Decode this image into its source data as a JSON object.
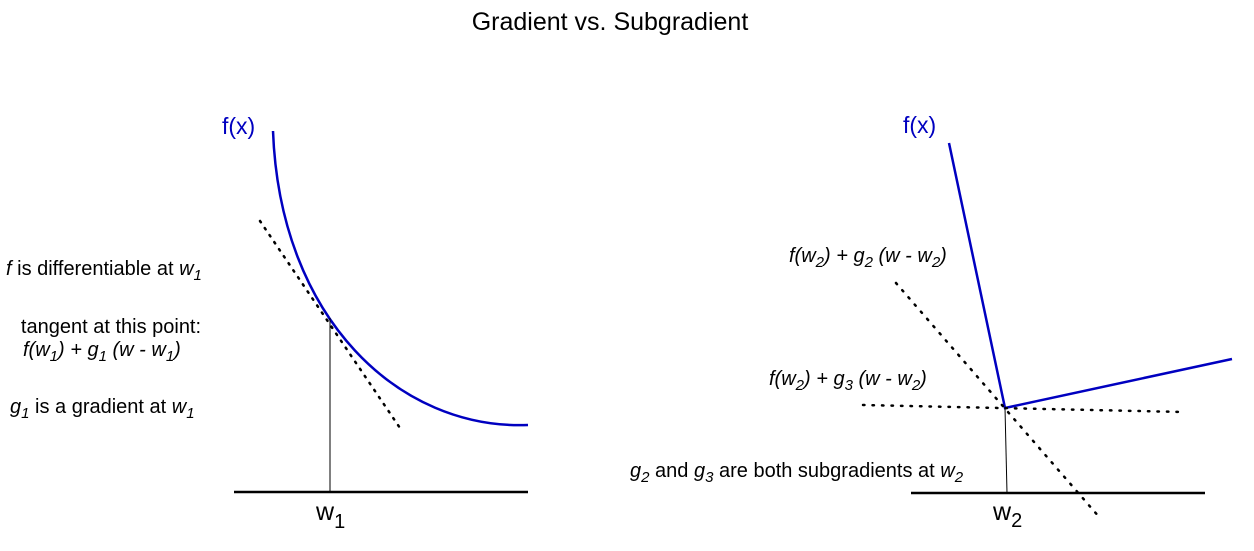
{
  "title": "Gradient vs. Subgradient",
  "colors": {
    "curve": "#0000c0",
    "text": "#000000",
    "background": "#ffffff"
  },
  "left_panel": {
    "function_label": "f(x)",
    "point_label": {
      "base": "w",
      "sub": "1"
    },
    "differentiable_note": {
      "f": "f",
      "text": " is differentiable at ",
      "w": "w",
      "sub": "1"
    },
    "tangent_heading": "tangent at this point:",
    "tangent_formula": {
      "a": "f(w",
      "a_sub": "1",
      "b": ") + g",
      "b_sub": "1",
      "c": " (w - w",
      "c_sub": "1",
      "d": ")"
    },
    "gradient_note": {
      "g": "g",
      "g_sub": "1",
      "text": " is a gradient at ",
      "w": "w",
      "w_sub": "1"
    }
  },
  "right_panel": {
    "function_label": "f(x)",
    "point_label": {
      "base": "w",
      "sub": "2"
    },
    "subgradient_line_1": {
      "a": "f(w",
      "a_sub": "2",
      "b": ") + g",
      "b_sub": "2",
      "c": " (w - w",
      "c_sub": "2",
      "d": ")"
    },
    "subgradient_line_2": {
      "a": "f(w",
      "a_sub": "2",
      "b": ") + g",
      "b_sub": "3",
      "c": " (w - w",
      "c_sub": "2",
      "d": ")"
    },
    "subgradients_note": {
      "g2": "g",
      "g2_sub": "2",
      "and": " and ",
      "g3": "g",
      "g3_sub": "3",
      "text": " are both subgradients at ",
      "w": "w",
      "w_sub": "2"
    }
  }
}
